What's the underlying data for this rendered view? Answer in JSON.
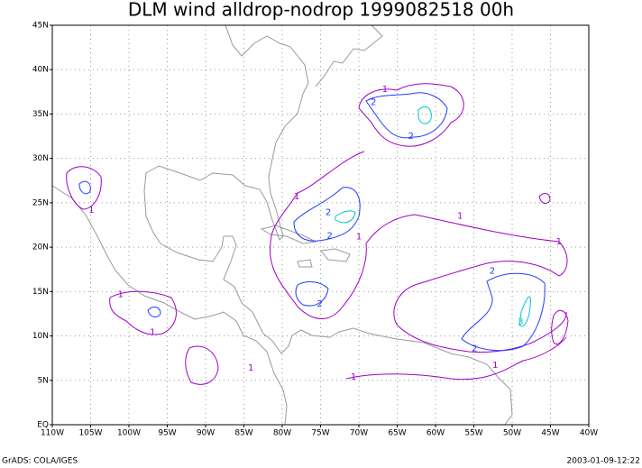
{
  "chart_data": {
    "type": "contour",
    "title": "DLM wind alldrop-nodrop 1999082518 00h",
    "xlim": [
      -110,
      -40
    ],
    "ylim": [
      0,
      45
    ],
    "grid": true,
    "xticks": [
      {
        "value": -110,
        "label": "110W"
      },
      {
        "value": -105,
        "label": "105W"
      },
      {
        "value": -100,
        "label": "100W"
      },
      {
        "value": -95,
        "label": "95W"
      },
      {
        "value": -90,
        "label": "90W"
      },
      {
        "value": -85,
        "label": "85W"
      },
      {
        "value": -80,
        "label": "80W"
      },
      {
        "value": -75,
        "label": "75W"
      },
      {
        "value": -70,
        "label": "70W"
      },
      {
        "value": -65,
        "label": "65W"
      },
      {
        "value": -60,
        "label": "60W"
      },
      {
        "value": -55,
        "label": "55W"
      },
      {
        "value": -50,
        "label": "50W"
      },
      {
        "value": -45,
        "label": "45W"
      },
      {
        "value": -40,
        "label": "40W"
      }
    ],
    "yticks": [
      {
        "value": 0,
        "label": "EQ"
      },
      {
        "value": 5,
        "label": "5N"
      },
      {
        "value": 10,
        "label": "10N"
      },
      {
        "value": 15,
        "label": "15N"
      },
      {
        "value": 20,
        "label": "20N"
      },
      {
        "value": 25,
        "label": "25N"
      },
      {
        "value": 30,
        "label": "30N"
      },
      {
        "value": 35,
        "label": "35N"
      },
      {
        "value": 40,
        "label": "40N"
      },
      {
        "value": 45,
        "label": "45N"
      }
    ],
    "contour_labels": [
      {
        "level": 1,
        "lon": -66.6,
        "lat": 37.8
      },
      {
        "level": 2,
        "lon": -68.1,
        "lat": 36.3
      },
      {
        "level": 2,
        "lon": -63.2,
        "lat": 32.5
      },
      {
        "level": 1,
        "lon": -104.9,
        "lat": 24.2
      },
      {
        "level": 1,
        "lon": -78.1,
        "lat": 25.7
      },
      {
        "level": 2,
        "lon": -74.0,
        "lat": 23.9
      },
      {
        "level": 2,
        "lon": -73.8,
        "lat": 21.3
      },
      {
        "level": 1,
        "lon": -70.0,
        "lat": 21.2
      },
      {
        "level": 1,
        "lon": -56.8,
        "lat": 23.5
      },
      {
        "level": 1,
        "lon": -43.9,
        "lat": 20.6
      },
      {
        "level": 2,
        "lon": -52.6,
        "lat": 17.3
      },
      {
        "level": 2,
        "lon": -75.1,
        "lat": 13.6
      },
      {
        "level": 1,
        "lon": -101.1,
        "lat": 14.7
      },
      {
        "level": 1,
        "lon": -96.9,
        "lat": 10.4
      },
      {
        "level": 3,
        "lon": -48.9,
        "lat": 11.6
      },
      {
        "level": 2,
        "lon": -54.9,
        "lat": 8.6
      },
      {
        "level": 1,
        "lon": -84.1,
        "lat": 6.4
      },
      {
        "level": 1,
        "lon": -52.2,
        "lat": 6.7
      },
      {
        "level": 1,
        "lon": -70.7,
        "lat": 5.4
      }
    ],
    "footer_left": "GrADS: COLA/IGES",
    "footer_right": "2003-01-09-12:22"
  }
}
